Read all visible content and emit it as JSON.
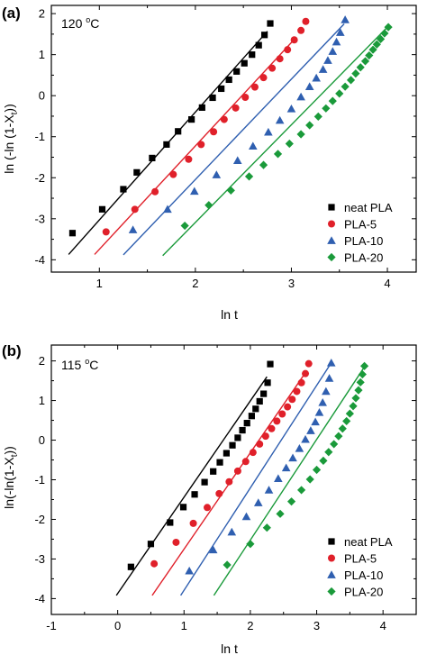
{
  "figure": {
    "marker_shapes": {
      "neat PLA": "square",
      "PLA-5": "circle",
      "PLA-10": "triangle",
      "PLA-20": "diamond"
    },
    "colors": {
      "neat PLA": "#000000",
      "PLA-5": "#e0202a",
      "PLA-10": "#2f5fb0",
      "PLA-20": "#1a9a3a"
    }
  },
  "chart_data": [
    {
      "type": "scatter",
      "panel_label": "(a)",
      "annotation": {
        "text": "120 °C",
        "value": "120",
        "unit": "C"
      },
      "xlabel": "ln t",
      "ylabel": "ln (-ln (1-X",
      "ylabel_sub": "t",
      "ylabel_close": "))",
      "xlim": [
        0.5,
        4.3
      ],
      "ylim": [
        -4.3,
        2.2
      ],
      "xticks": [
        1,
        2,
        3,
        4
      ],
      "xtick_labels": [
        "1",
        "2",
        "3",
        "4"
      ],
      "yticks": [
        -4,
        -3,
        -2,
        -1,
        0,
        1,
        2
      ],
      "ytick_labels": [
        "-4",
        "-3",
        "-2",
        "-1",
        "0",
        "1",
        "2"
      ],
      "legend_position": "bottom-right",
      "grid": false,
      "series": [
        {
          "name": "neat PLA",
          "x": [
            0.72,
            1.03,
            1.25,
            1.39,
            1.55,
            1.7,
            1.82,
            1.96,
            2.07,
            2.18,
            2.27,
            2.35,
            2.43,
            2.51,
            2.59,
            2.66,
            2.72,
            2.78
          ],
          "y": [
            -3.35,
            -2.77,
            -2.28,
            -1.87,
            -1.52,
            -1.19,
            -0.87,
            -0.58,
            -0.29,
            -0.05,
            0.17,
            0.39,
            0.59,
            0.79,
            1.0,
            1.23,
            1.48,
            1.76
          ],
          "fit": {
            "x": [
              0.68,
              2.75
            ],
            "y": [
              -3.87,
              1.57
            ]
          }
        },
        {
          "name": "PLA-5",
          "x": [
            1.07,
            1.37,
            1.58,
            1.77,
            1.93,
            2.06,
            2.19,
            2.3,
            2.42,
            2.52,
            2.62,
            2.71,
            2.8,
            2.88,
            2.96,
            3.03,
            3.1,
            3.15
          ],
          "y": [
            -3.32,
            -2.77,
            -2.34,
            -1.92,
            -1.55,
            -1.19,
            -0.88,
            -0.58,
            -0.3,
            -0.04,
            0.21,
            0.44,
            0.67,
            0.9,
            1.12,
            1.36,
            1.59,
            1.81
          ],
          "fit": {
            "x": [
              0.95,
              3.05
            ],
            "y": [
              -3.87,
              1.42
            ]
          }
        },
        {
          "name": "PLA-10",
          "x": [
            1.35,
            1.71,
            1.99,
            2.22,
            2.44,
            2.6,
            2.76,
            2.88,
            3.0,
            3.1,
            3.19,
            3.26,
            3.33,
            3.38,
            3.43,
            3.47,
            3.51,
            3.56
          ],
          "y": [
            -3.27,
            -2.77,
            -2.33,
            -1.93,
            -1.58,
            -1.23,
            -0.89,
            -0.6,
            -0.32,
            -0.03,
            0.22,
            0.43,
            0.64,
            0.86,
            1.08,
            1.31,
            1.54,
            1.85
          ],
          "fit": {
            "x": [
              1.25,
              3.55
            ],
            "y": [
              -3.88,
              1.75
            ]
          }
        },
        {
          "name": "PLA-20",
          "x": [
            1.89,
            2.14,
            2.37,
            2.56,
            2.71,
            2.86,
            2.98,
            3.1,
            3.19,
            3.28,
            3.36,
            3.43,
            3.5,
            3.56,
            3.62,
            3.67,
            3.72,
            3.77,
            3.81,
            3.85,
            3.89,
            3.93,
            3.97,
            4.01
          ],
          "y": [
            -3.17,
            -2.67,
            -2.31,
            -1.97,
            -1.69,
            -1.42,
            -1.17,
            -0.94,
            -0.72,
            -0.51,
            -0.31,
            -0.13,
            0.05,
            0.22,
            0.38,
            0.54,
            0.69,
            0.84,
            0.98,
            1.12,
            1.25,
            1.38,
            1.52,
            1.67
          ],
          "fit": {
            "x": [
              1.66,
              4.0
            ],
            "y": [
              -3.9,
              1.67
            ]
          }
        }
      ]
    },
    {
      "type": "scatter",
      "panel_label": "(b)",
      "annotation": {
        "text": "115 °C",
        "value": "115",
        "unit": "C"
      },
      "xlabel": "ln t",
      "ylabel": "ln(-ln(1-X",
      "ylabel_sub": "t",
      "ylabel_close": "))",
      "xlim": [
        -1.0,
        4.5
      ],
      "ylim": [
        -4.4,
        2.4
      ],
      "xticks": [
        -1,
        0,
        1,
        2,
        3,
        4
      ],
      "xtick_labels": [
        "-1",
        "0",
        "1",
        "2",
        "3",
        "4"
      ],
      "yticks": [
        -4,
        -3,
        -2,
        -1,
        0,
        1,
        2
      ],
      "ytick_labels": [
        "-4",
        "-3",
        "-2",
        "-1",
        "0",
        "1",
        "2"
      ],
      "legend_position": "bottom-right",
      "grid": false,
      "series": [
        {
          "name": "neat PLA",
          "x": [
            0.2,
            0.5,
            0.79,
            0.99,
            1.16,
            1.31,
            1.44,
            1.54,
            1.64,
            1.73,
            1.81,
            1.88,
            1.95,
            2.02,
            2.08,
            2.14,
            2.2,
            2.26,
            2.3
          ],
          "y": [
            -3.2,
            -2.62,
            -2.08,
            -1.69,
            -1.37,
            -1.06,
            -0.79,
            -0.56,
            -0.33,
            -0.13,
            0.06,
            0.25,
            0.43,
            0.61,
            0.79,
            0.98,
            1.17,
            1.45,
            1.92
          ],
          "fit": {
            "x": [
              -0.02,
              2.25
            ],
            "y": [
              -3.92,
              1.6
            ]
          }
        },
        {
          "name": "PLA-5",
          "x": [
            0.55,
            0.88,
            1.14,
            1.35,
            1.53,
            1.68,
            1.81,
            1.93,
            2.04,
            2.14,
            2.23,
            2.32,
            2.4,
            2.48,
            2.56,
            2.63,
            2.7,
            2.77,
            2.83,
            2.88
          ],
          "y": [
            -3.12,
            -2.58,
            -2.1,
            -1.7,
            -1.35,
            -1.05,
            -0.78,
            -0.54,
            -0.31,
            -0.1,
            0.1,
            0.29,
            0.48,
            0.66,
            0.84,
            1.03,
            1.23,
            1.45,
            1.68,
            1.93
          ],
          "fit": {
            "x": [
              0.52,
              2.85
            ],
            "y": [
              -3.92,
              1.75
            ]
          }
        },
        {
          "name": "PLA-10",
          "x": [
            1.08,
            1.44,
            1.72,
            1.94,
            2.12,
            2.28,
            2.42,
            2.54,
            2.64,
            2.74,
            2.83,
            2.91,
            2.98,
            3.04,
            3.09,
            3.14,
            3.19,
            3.22
          ],
          "y": [
            -3.3,
            -2.77,
            -2.32,
            -1.93,
            -1.58,
            -1.26,
            -0.97,
            -0.7,
            -0.45,
            -0.21,
            0.02,
            0.24,
            0.46,
            0.7,
            0.95,
            1.23,
            1.56,
            1.95
          ],
          "fit": {
            "x": [
              0.95,
              3.2
            ],
            "y": [
              -3.92,
              1.9
            ]
          }
        },
        {
          "name": "PLA-20",
          "x": [
            1.65,
            2.0,
            2.25,
            2.45,
            2.62,
            2.77,
            2.9,
            3.0,
            3.1,
            3.18,
            3.26,
            3.33,
            3.39,
            3.45,
            3.5,
            3.55,
            3.59,
            3.63,
            3.66,
            3.69,
            3.72
          ],
          "y": [
            -3.15,
            -2.62,
            -2.21,
            -1.86,
            -1.55,
            -1.26,
            -0.99,
            -0.75,
            -0.52,
            -0.3,
            -0.1,
            0.1,
            0.29,
            0.48,
            0.67,
            0.86,
            1.06,
            1.26,
            1.46,
            1.66,
            1.87
          ],
          "fit": {
            "x": [
              1.45,
              3.72
            ],
            "y": [
              -3.92,
              1.85
            ]
          }
        }
      ]
    }
  ]
}
